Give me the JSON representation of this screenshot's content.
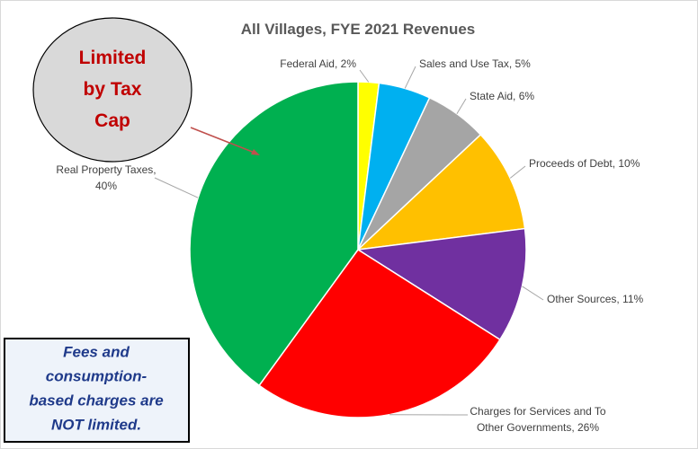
{
  "chart_data": {
    "type": "pie",
    "title": "All Villages, FYE 2021 Revenues",
    "values": [
      2,
      5,
      6,
      10,
      11,
      26,
      40
    ],
    "value_labels": [
      "Federal Aid, 2%",
      "Sales and Use Tax, 5%",
      "State Aid, 6%",
      "Proceeds of Debt, 10%",
      "Other Sources, 11%",
      "Charges for Services and To\nOther Governments, 26%",
      "Real Property Taxes,\n40%"
    ],
    "colors": [
      "#ffff00",
      "#00b0f0",
      "#a5a5a5",
      "#ffc000",
      "#7030a0",
      "#ff0000",
      "#00b050"
    ],
    "annotations": [
      "Limited\nby Tax\nCap",
      "Fees and\nconsumption-\nbased charges are\nNOT limited."
    ]
  }
}
